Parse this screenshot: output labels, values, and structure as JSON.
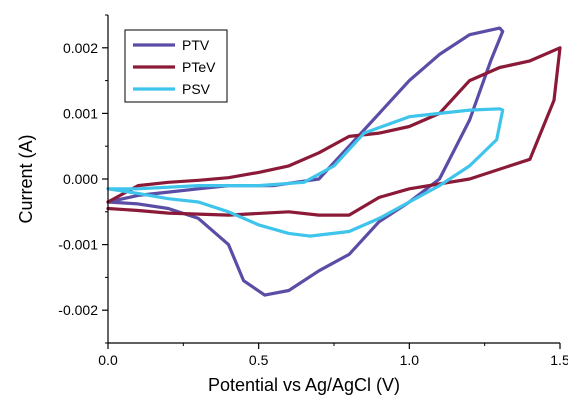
{
  "chart_data": {
    "type": "line",
    "xlabel": "Potential vs Ag/AgCl (V)",
    "ylabel": "Current (A)",
    "xlim": [
      0,
      1.5
    ],
    "ylim": [
      -0.0025,
      0.0025
    ],
    "x_ticks": [
      "0.0",
      "0.5",
      "1.0",
      "1.5"
    ],
    "x_tick_values": [
      0,
      0.5,
      1.0,
      1.5
    ],
    "y_ticks": [
      "0.002",
      "0.001",
      "0.000",
      "-0.001",
      "-0.002"
    ],
    "y_tick_values": [
      0.002,
      0.001,
      0.0,
      -0.001,
      -0.002
    ],
    "grid": false,
    "legend_position": "top-left",
    "series": [
      {
        "name": "PTV",
        "color": "#5b4da6",
        "points": [
          [
            0.0,
            -0.00035
          ],
          [
            0.1,
            -0.00025
          ],
          [
            0.2,
            -0.0002
          ],
          [
            0.3,
            -0.00015
          ],
          [
            0.4,
            -0.0001
          ],
          [
            0.55,
            -0.0001
          ],
          [
            0.7,
            0.0
          ],
          [
            0.8,
            0.0005
          ],
          [
            0.9,
            0.001
          ],
          [
            1.0,
            0.0015
          ],
          [
            1.1,
            0.0019
          ],
          [
            1.2,
            0.0022
          ],
          [
            1.3,
            0.0023
          ],
          [
            1.31,
            0.00225
          ],
          [
            1.27,
            0.0018
          ],
          [
            1.2,
            0.0009
          ],
          [
            1.1,
            0.0
          ],
          [
            1.0,
            -0.00035
          ],
          [
            0.9,
            -0.00065
          ],
          [
            0.8,
            -0.00115
          ],
          [
            0.7,
            -0.0014
          ],
          [
            0.6,
            -0.0017
          ],
          [
            0.52,
            -0.00177
          ],
          [
            0.45,
            -0.00155
          ],
          [
            0.4,
            -0.001
          ],
          [
            0.3,
            -0.0006
          ],
          [
            0.2,
            -0.00045
          ],
          [
            0.1,
            -0.00038
          ],
          [
            0.0,
            -0.00035
          ]
        ]
      },
      {
        "name": "PTeV",
        "color": "#8b1a38",
        "points": [
          [
            0.0,
            -0.00035
          ],
          [
            0.1,
            -0.0001
          ],
          [
            0.2,
            -5e-05
          ],
          [
            0.3,
            -2e-05
          ],
          [
            0.4,
            2e-05
          ],
          [
            0.5,
            0.0001
          ],
          [
            0.6,
            0.0002
          ],
          [
            0.7,
            0.0004
          ],
          [
            0.8,
            0.00065
          ],
          [
            0.9,
            0.0007
          ],
          [
            1.0,
            0.0008
          ],
          [
            1.1,
            0.001
          ],
          [
            1.2,
            0.0015
          ],
          [
            1.3,
            0.0017
          ],
          [
            1.4,
            0.0018
          ],
          [
            1.5,
            0.002
          ],
          [
            1.48,
            0.0012
          ],
          [
            1.4,
            0.0003
          ],
          [
            1.2,
            0.0
          ],
          [
            1.0,
            -0.00015
          ],
          [
            0.9,
            -0.00028
          ],
          [
            0.8,
            -0.00055
          ],
          [
            0.7,
            -0.00055
          ],
          [
            0.6,
            -0.0005
          ],
          [
            0.4,
            -0.00055
          ],
          [
            0.2,
            -0.00052
          ],
          [
            0.1,
            -0.00048
          ],
          [
            0.0,
            -0.00045
          ]
        ]
      },
      {
        "name": "PSV",
        "color": "#3fc4ec",
        "points": [
          [
            0.0,
            -0.00015
          ],
          [
            0.1,
            -0.00015
          ],
          [
            0.3,
            -0.0001
          ],
          [
            0.5,
            -0.0001
          ],
          [
            0.65,
            -5e-05
          ],
          [
            0.75,
            0.0002
          ],
          [
            0.85,
            0.0007
          ],
          [
            1.0,
            0.00095
          ],
          [
            1.1,
            0.001
          ],
          [
            1.2,
            0.00105
          ],
          [
            1.3,
            0.00107
          ],
          [
            1.31,
            0.00105
          ],
          [
            1.29,
            0.0006
          ],
          [
            1.2,
            0.0002
          ],
          [
            1.1,
            -0.0001
          ],
          [
            1.0,
            -0.00035
          ],
          [
            0.9,
            -0.0006
          ],
          [
            0.8,
            -0.0008
          ],
          [
            0.67,
            -0.00087
          ],
          [
            0.6,
            -0.00083
          ],
          [
            0.5,
            -0.0007
          ],
          [
            0.4,
            -0.0005
          ],
          [
            0.3,
            -0.00035
          ],
          [
            0.2,
            -0.0003
          ],
          [
            0.1,
            -0.00022
          ],
          [
            0.0,
            -0.00015
          ]
        ]
      }
    ]
  }
}
